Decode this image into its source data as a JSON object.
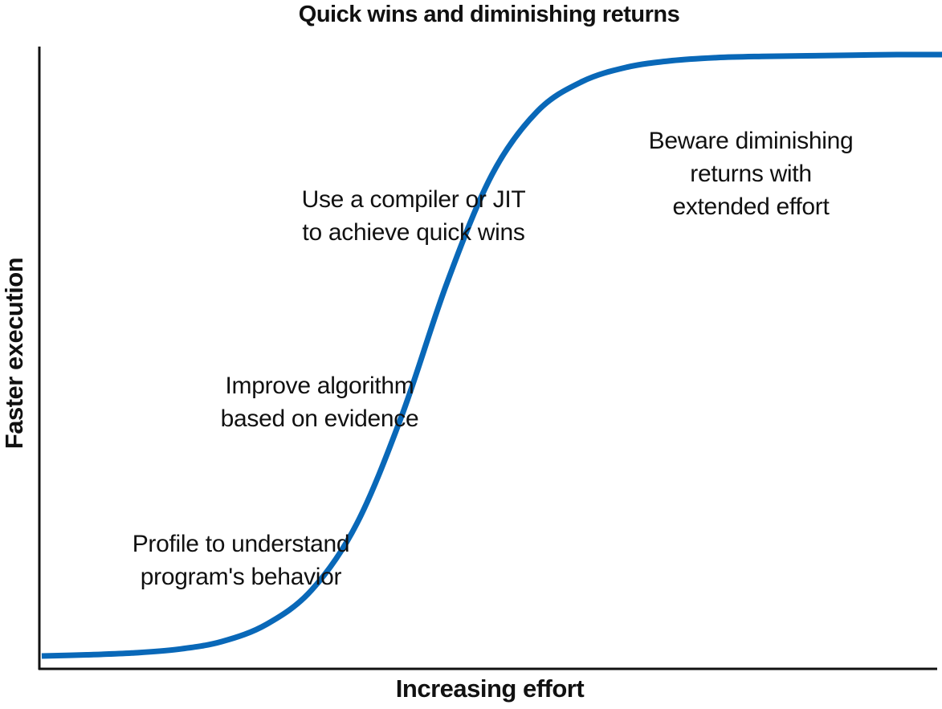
{
  "chart_data": {
    "type": "line",
    "title": "Quick wins and diminishing returns",
    "xlabel": "Increasing effort",
    "ylabel": "Faster execution",
    "ticks": "none",
    "grid": false,
    "series": [
      {
        "color": "#0968b8",
        "x": [
          0,
          5,
          10,
          15,
          20,
          25,
          30,
          35,
          40,
          45,
          50,
          55,
          60,
          65,
          70,
          75,
          80,
          85,
          90,
          95,
          100
        ],
        "y": [
          0,
          0.002,
          0.005,
          0.011,
          0.024,
          0.053,
          0.11,
          0.22,
          0.4,
          0.62,
          0.8,
          0.905,
          0.955,
          0.979,
          0.99,
          0.995,
          0.997,
          0.998,
          0.999,
          1.0,
          1.0
        ]
      }
    ],
    "annotations": [
      {
        "id": "profile",
        "lines": [
          "Profile to understand",
          "program's behavior"
        ]
      },
      {
        "id": "algorithm",
        "lines": [
          "Improve algorithm",
          "based on evidence"
        ]
      },
      {
        "id": "compiler",
        "lines": [
          "Use a compiler or JIT",
          "to achieve quick wins"
        ]
      },
      {
        "id": "diminishing",
        "lines": [
          "Beware diminishing",
          "returns with",
          "extended effort"
        ]
      }
    ]
  }
}
